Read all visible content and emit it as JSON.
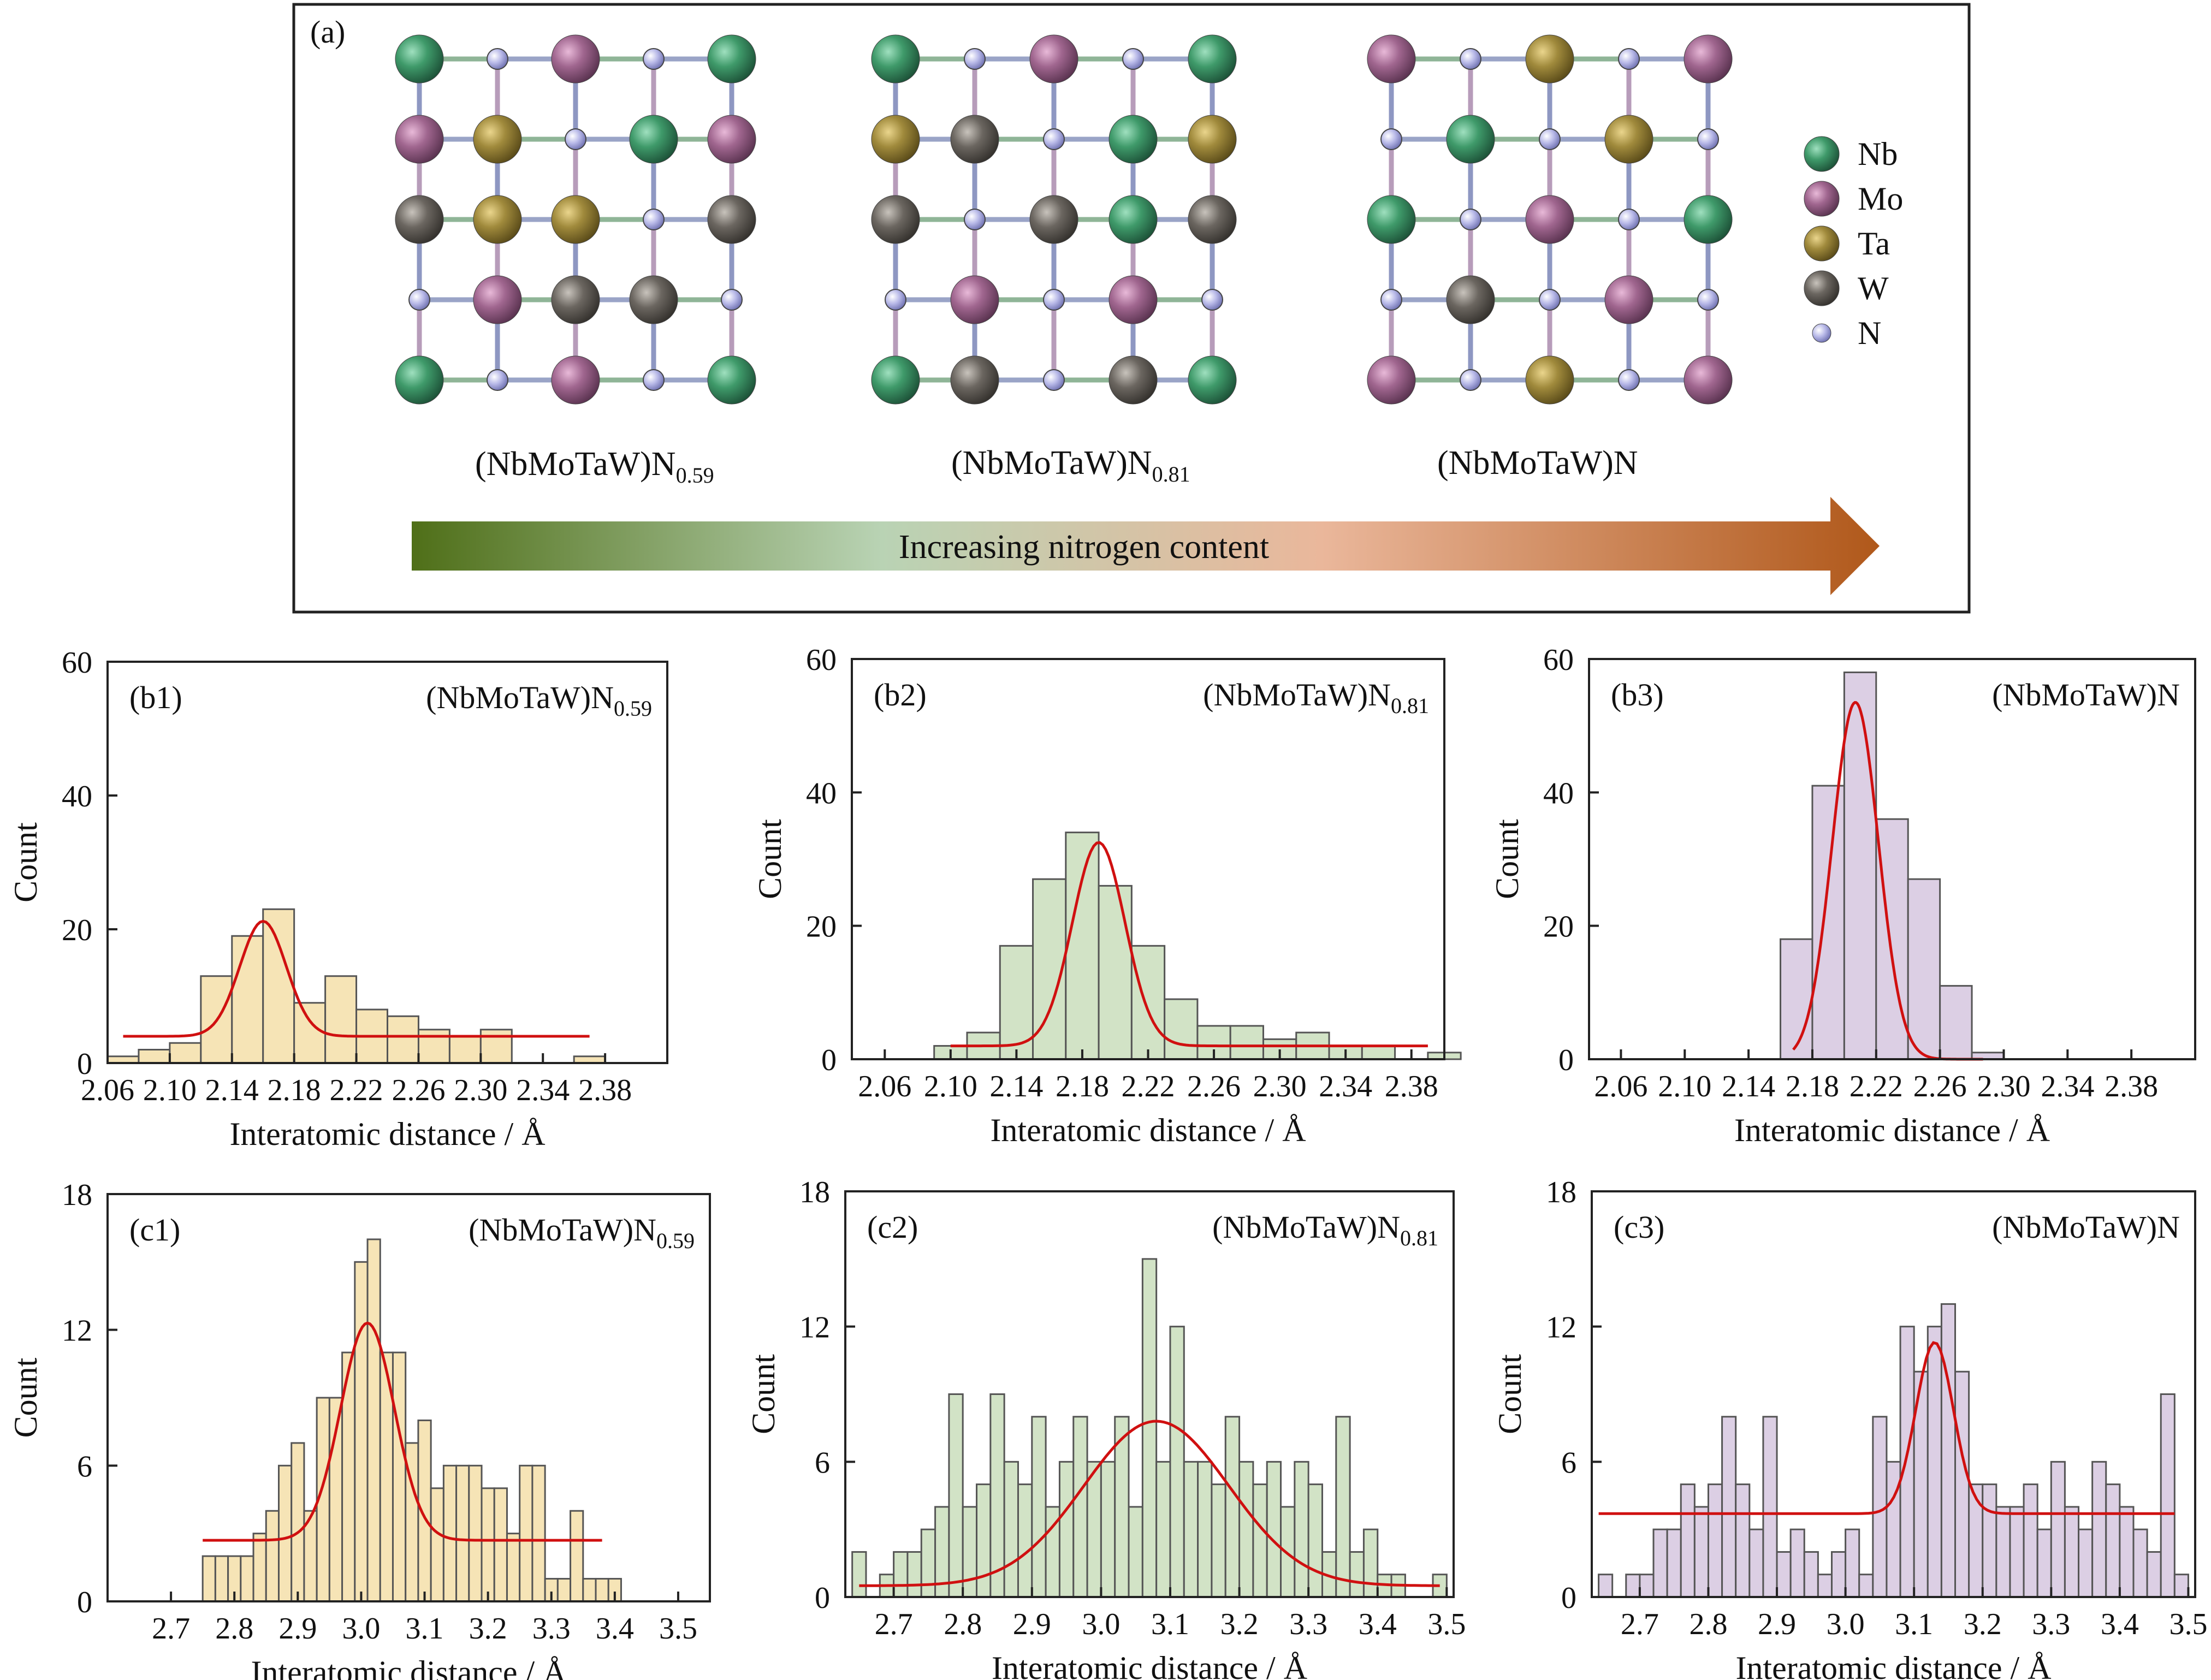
{
  "panel_a": {
    "label": "(a)",
    "structures": [
      {
        "base": "(NbMoTaW)N",
        "sub": "0.59"
      },
      {
        "base": "(NbMoTaW)N",
        "sub": "0.81"
      },
      {
        "base": "(NbMoTaW)N",
        "sub": ""
      }
    ],
    "legend": [
      {
        "label": "Nb",
        "color": "#3f9a6a"
      },
      {
        "label": "Mo",
        "color": "#a0668f"
      },
      {
        "label": "Ta",
        "color": "#a08a3c"
      },
      {
        "label": "W",
        "color": "#6b6660"
      },
      {
        "label": "N",
        "color": "#9fa0d8"
      }
    ],
    "arrow_text": "Increasing nitrogen content",
    "arrow_colors": [
      "#4f6f18",
      "#b9d3b4",
      "#eab79b",
      "#b0581a"
    ]
  },
  "chart_data": [
    {
      "type": "bar",
      "label": "(b1)",
      "formula_base": "(NbMoTaW)N",
      "formula_sub": "0.59",
      "xlabel": "Interatomic distance / Å",
      "ylabel": "Count",
      "xlim": [
        2.06,
        2.42
      ],
      "ylim": [
        0,
        60
      ],
      "xticks": [
        2.06,
        2.1,
        2.14,
        2.18,
        2.22,
        2.26,
        2.3,
        2.34,
        2.38
      ],
      "xtick_labels": [
        "2.06",
        "2.10",
        "2.14",
        "2.18",
        "2.22",
        "2.26",
        "2.30",
        "2.34",
        "2.38"
      ],
      "yticks": [
        0,
        20,
        40,
        60
      ],
      "ytick_labels": [
        "0",
        "20",
        "40",
        "60"
      ],
      "bin_width": 0.02,
      "fill": "#f6e4b6",
      "bins": [
        [
          2.06,
          1
        ],
        [
          2.08,
          2
        ],
        [
          2.1,
          3
        ],
        [
          2.12,
          13
        ],
        [
          2.14,
          19
        ],
        [
          2.16,
          23
        ],
        [
          2.18,
          9
        ],
        [
          2.2,
          13
        ],
        [
          2.22,
          8
        ],
        [
          2.24,
          7
        ],
        [
          2.26,
          5
        ],
        [
          2.28,
          4
        ],
        [
          2.3,
          5
        ],
        [
          2.32,
          0
        ],
        [
          2.34,
          0
        ],
        [
          2.36,
          1
        ]
      ],
      "fit": {
        "y0": 4.0,
        "A": 17.2,
        "xc": 2.16,
        "w": 0.03,
        "xmin": 2.07,
        "xmax": 2.37
      }
    },
    {
      "type": "bar",
      "label": "(b2)",
      "formula_base": "(NbMoTaW)N",
      "formula_sub": "0.81",
      "xlabel": "Interatomic distance / Å",
      "ylabel": "Count",
      "xlim": [
        2.04,
        2.4
      ],
      "ylim": [
        0,
        60
      ],
      "xticks": [
        2.06,
        2.1,
        2.14,
        2.18,
        2.22,
        2.26,
        2.3,
        2.34,
        2.38
      ],
      "xtick_labels": [
        "2.06",
        "2.10",
        "2.14",
        "2.18",
        "2.22",
        "2.26",
        "2.30",
        "2.34",
        "2.38"
      ],
      "yticks": [
        0,
        20,
        40,
        60
      ],
      "ytick_labels": [
        "0",
        "20",
        "40",
        "60"
      ],
      "bin_width": 0.02,
      "fill": "#d2e3c6",
      "bins": [
        [
          2.09,
          2
        ],
        [
          2.11,
          4
        ],
        [
          2.13,
          17
        ],
        [
          2.15,
          27
        ],
        [
          2.17,
          34
        ],
        [
          2.19,
          26
        ],
        [
          2.21,
          17
        ],
        [
          2.23,
          9
        ],
        [
          2.25,
          5
        ],
        [
          2.27,
          5
        ],
        [
          2.29,
          3
        ],
        [
          2.31,
          4
        ],
        [
          2.33,
          2
        ],
        [
          2.35,
          2
        ],
        [
          2.37,
          0
        ],
        [
          2.39,
          1
        ]
      ],
      "fit": {
        "y0": 2.0,
        "A": 30.5,
        "xc": 2.19,
        "w": 0.032,
        "xmin": 2.1,
        "xmax": 2.39
      }
    },
    {
      "type": "bar",
      "label": "(b3)",
      "formula_base": "(NbMoTaW)N",
      "formula_sub": "",
      "xlabel": "Interatomic distance / Å",
      "ylabel": "Count",
      "xlim": [
        2.04,
        2.42
      ],
      "ylim": [
        0,
        60
      ],
      "xticks": [
        2.06,
        2.1,
        2.14,
        2.18,
        2.22,
        2.26,
        2.3,
        2.34,
        2.38
      ],
      "xtick_labels": [
        "2.06",
        "2.10",
        "2.14",
        "2.18",
        "2.22",
        "2.26",
        "2.30",
        "2.34",
        "2.38"
      ],
      "yticks": [
        0,
        20,
        40,
        60
      ],
      "ytick_labels": [
        "0",
        "20",
        "40",
        "60"
      ],
      "bin_width": 0.02,
      "fill": "#dccfe4",
      "bins": [
        [
          2.16,
          18
        ],
        [
          2.18,
          41
        ],
        [
          2.2,
          58
        ],
        [
          2.22,
          36
        ],
        [
          2.24,
          27
        ],
        [
          2.26,
          11
        ],
        [
          2.28,
          1
        ]
      ],
      "fit": {
        "y0": 0.0,
        "A": 53.5,
        "xc": 2.207,
        "w": 0.029,
        "xmin": 2.168,
        "xmax": 2.287
      }
    },
    {
      "type": "bar",
      "label": "(c1)",
      "formula_base": "(NbMoTaW)N",
      "formula_sub": "0.59",
      "xlabel": "Interatomic distance / Å",
      "ylabel": "Count",
      "xlim": [
        2.6,
        3.55
      ],
      "ylim": [
        0,
        18
      ],
      "xticks": [
        2.7,
        2.8,
        2.9,
        3.0,
        3.1,
        3.2,
        3.3,
        3.4,
        3.5
      ],
      "xtick_labels": [
        "2.7",
        "2.8",
        "2.9",
        "3.0",
        "3.1",
        "3.2",
        "3.3",
        "3.4",
        "3.5"
      ],
      "yticks": [
        0,
        6,
        12,
        18
      ],
      "ytick_labels": [
        "0",
        "6",
        "12",
        "18"
      ],
      "bin_width": 0.02,
      "fill": "#f6e4b6",
      "bins": [
        [
          2.75,
          2
        ],
        [
          2.77,
          2
        ],
        [
          2.79,
          2
        ],
        [
          2.81,
          2
        ],
        [
          2.83,
          3
        ],
        [
          2.85,
          4
        ],
        [
          2.87,
          6
        ],
        [
          2.89,
          7
        ],
        [
          2.91,
          4
        ],
        [
          2.93,
          9
        ],
        [
          2.95,
          9
        ],
        [
          2.97,
          11
        ],
        [
          2.99,
          15
        ],
        [
          3.01,
          16
        ],
        [
          3.03,
          11
        ],
        [
          3.05,
          11
        ],
        [
          3.07,
          7
        ],
        [
          3.09,
          8
        ],
        [
          3.11,
          5
        ],
        [
          3.13,
          6
        ],
        [
          3.15,
          6
        ],
        [
          3.17,
          6
        ],
        [
          3.19,
          5
        ],
        [
          3.21,
          5
        ],
        [
          3.23,
          3
        ],
        [
          3.25,
          6
        ],
        [
          3.27,
          6
        ],
        [
          3.29,
          1
        ],
        [
          3.31,
          1
        ],
        [
          3.33,
          4
        ],
        [
          3.35,
          1
        ],
        [
          3.37,
          1
        ],
        [
          3.39,
          1
        ]
      ],
      "fit": {
        "y0": 2.7,
        "A": 9.6,
        "xc": 3.01,
        "w": 0.085,
        "xmin": 2.75,
        "xmax": 3.38
      }
    },
    {
      "type": "bar",
      "label": "(c2)",
      "formula_base": "(NbMoTaW)N",
      "formula_sub": "0.81",
      "xlabel": "Interatomic distance / Å",
      "ylabel": "Count",
      "xlim": [
        2.63,
        3.51
      ],
      "ylim": [
        0,
        18
      ],
      "xticks": [
        2.7,
        2.8,
        2.9,
        3.0,
        3.1,
        3.2,
        3.3,
        3.4,
        3.5
      ],
      "xtick_labels": [
        "2.7",
        "2.8",
        "2.9",
        "3.0",
        "3.1",
        "3.2",
        "3.3",
        "3.4",
        "3.5"
      ],
      "yticks": [
        0,
        6,
        12,
        18
      ],
      "ytick_labels": [
        "0",
        "6",
        "12",
        "18"
      ],
      "bin_width": 0.02,
      "fill": "#d2e3c6",
      "bins": [
        [
          2.64,
          2
        ],
        [
          2.66,
          0
        ],
        [
          2.68,
          1
        ],
        [
          2.7,
          2
        ],
        [
          2.72,
          2
        ],
        [
          2.74,
          3
        ],
        [
          2.76,
          4
        ],
        [
          2.78,
          9
        ],
        [
          2.8,
          4
        ],
        [
          2.82,
          5
        ],
        [
          2.84,
          9
        ],
        [
          2.86,
          6
        ],
        [
          2.88,
          5
        ],
        [
          2.9,
          8
        ],
        [
          2.92,
          4
        ],
        [
          2.94,
          6
        ],
        [
          2.96,
          8
        ],
        [
          2.98,
          6
        ],
        [
          3.0,
          6
        ],
        [
          3.02,
          8
        ],
        [
          3.04,
          4
        ],
        [
          3.06,
          15
        ],
        [
          3.08,
          6
        ],
        [
          3.1,
          12
        ],
        [
          3.12,
          6
        ],
        [
          3.14,
          6
        ],
        [
          3.16,
          5
        ],
        [
          3.18,
          8
        ],
        [
          3.2,
          6
        ],
        [
          3.22,
          5
        ],
        [
          3.24,
          6
        ],
        [
          3.26,
          4
        ],
        [
          3.28,
          6
        ],
        [
          3.3,
          5
        ],
        [
          3.32,
          2
        ],
        [
          3.34,
          8
        ],
        [
          3.36,
          2
        ],
        [
          3.38,
          3
        ],
        [
          3.4,
          1
        ],
        [
          3.42,
          1
        ],
        [
          3.48,
          1
        ]
      ],
      "fit": {
        "y0": 0.5,
        "A": 7.3,
        "xc": 3.08,
        "w": 0.21,
        "xmin": 2.65,
        "xmax": 3.49
      }
    },
    {
      "type": "bar",
      "label": "(c3)",
      "formula_base": "(NbMoTaW)N",
      "formula_sub": "",
      "xlabel": "Interatomic distance / Å",
      "ylabel": "Count",
      "xlim": [
        2.63,
        3.51
      ],
      "ylim": [
        0,
        18
      ],
      "xticks": [
        2.7,
        2.8,
        2.9,
        3.0,
        3.1,
        3.2,
        3.3,
        3.4,
        3.5
      ],
      "xtick_labels": [
        "2.7",
        "2.8",
        "2.9",
        "3.0",
        "3.1",
        "3.2",
        "3.3",
        "3.4",
        "3.5"
      ],
      "yticks": [
        0,
        6,
        12,
        18
      ],
      "ytick_labels": [
        "0",
        "6",
        "12",
        "18"
      ],
      "bin_width": 0.02,
      "fill": "#dccfe4",
      "bins": [
        [
          2.64,
          1
        ],
        [
          2.66,
          0
        ],
        [
          2.68,
          1
        ],
        [
          2.7,
          1
        ],
        [
          2.72,
          3
        ],
        [
          2.74,
          3
        ],
        [
          2.76,
          5
        ],
        [
          2.78,
          4
        ],
        [
          2.8,
          5
        ],
        [
          2.82,
          8
        ],
        [
          2.84,
          5
        ],
        [
          2.86,
          3
        ],
        [
          2.88,
          8
        ],
        [
          2.9,
          2
        ],
        [
          2.92,
          3
        ],
        [
          2.94,
          2
        ],
        [
          2.96,
          1
        ],
        [
          2.98,
          2
        ],
        [
          3.0,
          3
        ],
        [
          3.02,
          1
        ],
        [
          3.04,
          8
        ],
        [
          3.06,
          6
        ],
        [
          3.08,
          12
        ],
        [
          3.1,
          10
        ],
        [
          3.12,
          12
        ],
        [
          3.14,
          13
        ],
        [
          3.16,
          10
        ],
        [
          3.18,
          5
        ],
        [
          3.2,
          5
        ],
        [
          3.22,
          4
        ],
        [
          3.24,
          4
        ],
        [
          3.26,
          5
        ],
        [
          3.28,
          3
        ],
        [
          3.3,
          6
        ],
        [
          3.32,
          4
        ],
        [
          3.34,
          3
        ],
        [
          3.36,
          6
        ],
        [
          3.38,
          5
        ],
        [
          3.4,
          4
        ],
        [
          3.42,
          3
        ],
        [
          3.44,
          2
        ],
        [
          3.46,
          9
        ],
        [
          3.48,
          1
        ]
      ],
      "fit": {
        "y0": 3.7,
        "A": 7.6,
        "xc": 3.13,
        "w": 0.055,
        "xmin": 2.64,
        "xmax": 3.48
      }
    }
  ]
}
